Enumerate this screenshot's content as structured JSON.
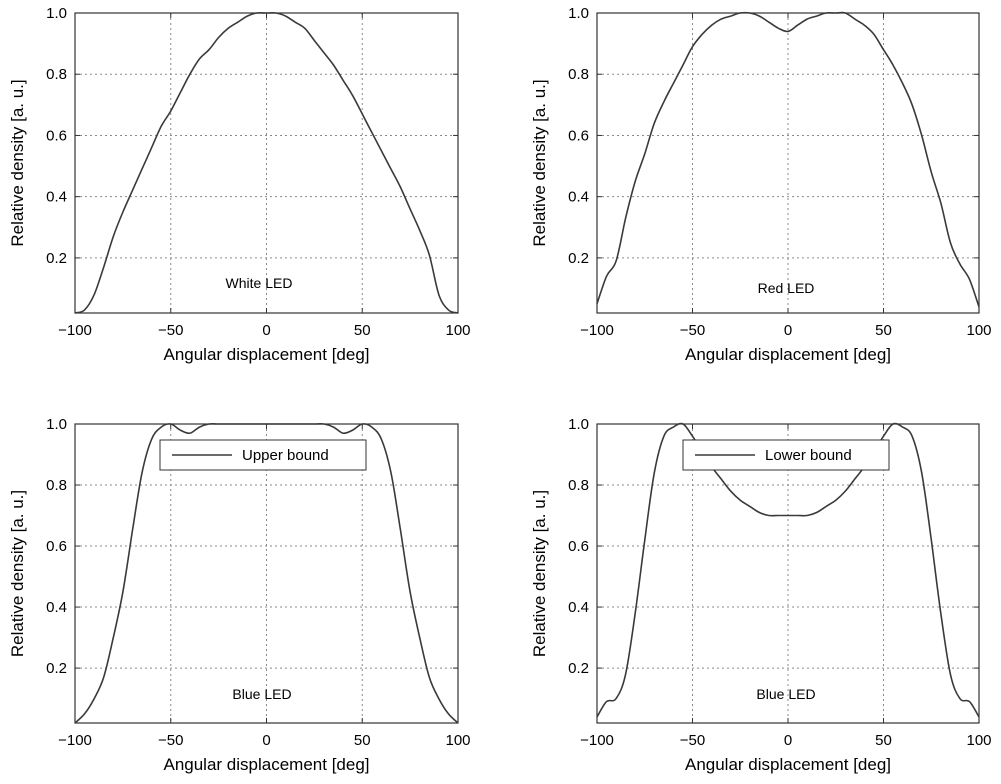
{
  "chart_data": [
    {
      "type": "line",
      "xlabel": "Angular displacement [deg]",
      "ylabel": "Relative density [a. u.]",
      "xlim": [
        -100,
        100
      ],
      "ylim": [
        0.02,
        1.0
      ],
      "xticks": [
        -100,
        -50,
        0,
        50,
        100
      ],
      "yticks": [
        0.2,
        0.4,
        0.6,
        0.8,
        1.0
      ],
      "tick_labels_x": [
        "−100",
        "−50",
        "0",
        "50",
        "100"
      ],
      "tick_labels_y": [
        "0.2",
        "0.4",
        "0.6",
        "0.8",
        "1.0"
      ],
      "grid": true,
      "annotation": "White LED",
      "series": [
        {
          "x": [
            -100,
            -95,
            -90,
            -85,
            -80,
            -75,
            -70,
            -65,
            -60,
            -55,
            -50,
            -45,
            -40,
            -35,
            -30,
            -25,
            -20,
            -15,
            -10,
            -5,
            0,
            5,
            10,
            15,
            20,
            25,
            30,
            35,
            40,
            45,
            50,
            55,
            60,
            65,
            70,
            75,
            80,
            85,
            90,
            95,
            100
          ],
          "y": [
            0.02,
            0.03,
            0.08,
            0.17,
            0.27,
            0.35,
            0.42,
            0.49,
            0.56,
            0.63,
            0.68,
            0.74,
            0.8,
            0.85,
            0.88,
            0.92,
            0.95,
            0.97,
            0.99,
            1.0,
            1.0,
            1.0,
            0.99,
            0.97,
            0.95,
            0.91,
            0.87,
            0.83,
            0.78,
            0.73,
            0.67,
            0.61,
            0.55,
            0.49,
            0.43,
            0.36,
            0.29,
            0.21,
            0.08,
            0.03,
            0.02
          ]
        }
      ]
    },
    {
      "type": "line",
      "xlabel": "Angular displacement [deg]",
      "ylabel": "Relative density [a. u.]",
      "xlim": [
        -100,
        100
      ],
      "ylim": [
        0.02,
        1.0
      ],
      "xticks": [
        -100,
        -50,
        0,
        50,
        100
      ],
      "yticks": [
        0.2,
        0.4,
        0.6,
        0.8,
        1.0
      ],
      "tick_labels_x": [
        "−100",
        "−50",
        "0",
        "50",
        "100"
      ],
      "tick_labels_y": [
        "0.2",
        "0.4",
        "0.6",
        "0.8",
        "1.0"
      ],
      "grid": true,
      "annotation": "Red LED",
      "series": [
        {
          "x": [
            -100,
            -95,
            -90,
            -85,
            -80,
            -75,
            -70,
            -65,
            -60,
            -55,
            -50,
            -45,
            -40,
            -35,
            -30,
            -25,
            -20,
            -15,
            -10,
            -5,
            0,
            5,
            10,
            15,
            20,
            25,
            30,
            35,
            40,
            45,
            50,
            55,
            60,
            65,
            70,
            75,
            80,
            85,
            90,
            95,
            100
          ],
          "y": [
            0.05,
            0.14,
            0.19,
            0.33,
            0.45,
            0.54,
            0.64,
            0.71,
            0.77,
            0.83,
            0.89,
            0.93,
            0.96,
            0.98,
            0.99,
            1.0,
            1.0,
            0.99,
            0.97,
            0.95,
            0.94,
            0.96,
            0.98,
            0.99,
            1.0,
            1.0,
            1.0,
            0.98,
            0.96,
            0.93,
            0.88,
            0.83,
            0.77,
            0.7,
            0.6,
            0.48,
            0.38,
            0.25,
            0.18,
            0.13,
            0.04
          ]
        }
      ]
    },
    {
      "type": "line",
      "xlabel": "Angular displacement [deg]",
      "ylabel": "Relative density [a. u.]",
      "xlim": [
        -100,
        100
      ],
      "ylim": [
        0.02,
        1.0
      ],
      "xticks": [
        -100,
        -50,
        0,
        50,
        100
      ],
      "yticks": [
        0.2,
        0.4,
        0.6,
        0.8,
        1.0
      ],
      "tick_labels_x": [
        "−100",
        "−50",
        "0",
        "50",
        "100"
      ],
      "tick_labels_y": [
        "0.2",
        "0.4",
        "0.6",
        "0.8",
        "1.0"
      ],
      "grid": true,
      "annotation": "Blue LED",
      "legend": "top-center",
      "series": [
        {
          "name": "Upper bound",
          "x": [
            -100,
            -95,
            -90,
            -85,
            -80,
            -75,
            -70,
            -65,
            -60,
            -55,
            -50,
            -45,
            -40,
            -35,
            -30,
            -25,
            -20,
            -15,
            -10,
            -5,
            0,
            5,
            10,
            15,
            20,
            25,
            30,
            35,
            40,
            45,
            50,
            55,
            60,
            65,
            70,
            75,
            80,
            85,
            90,
            95,
            100
          ],
          "y": [
            0.02,
            0.05,
            0.1,
            0.17,
            0.3,
            0.45,
            0.65,
            0.84,
            0.95,
            0.99,
            1.0,
            0.98,
            0.97,
            0.99,
            1.0,
            1.0,
            1.0,
            1.0,
            1.0,
            1.0,
            1.0,
            1.0,
            1.0,
            1.0,
            1.0,
            1.0,
            1.0,
            0.99,
            0.97,
            0.98,
            1.0,
            0.99,
            0.95,
            0.84,
            0.65,
            0.45,
            0.3,
            0.17,
            0.1,
            0.05,
            0.02
          ]
        }
      ]
    },
    {
      "type": "line",
      "xlabel": "Angular displacement [deg]",
      "ylabel": "Relative density [a. u.]",
      "xlim": [
        -100,
        100
      ],
      "ylim": [
        0.02,
        1.0
      ],
      "xticks": [
        -100,
        -50,
        0,
        50,
        100
      ],
      "yticks": [
        0.2,
        0.4,
        0.6,
        0.8,
        1.0
      ],
      "tick_labels_x": [
        "−100",
        "−50",
        "0",
        "50",
        "100"
      ],
      "tick_labels_y": [
        "0.2",
        "0.4",
        "0.6",
        "0.8",
        "1.0"
      ],
      "grid": true,
      "annotation": "Blue LED",
      "legend": "top-center",
      "series": [
        {
          "name": "Lower bound",
          "x": [
            -100,
            -95,
            -90,
            -85,
            -80,
            -75,
            -70,
            -65,
            -60,
            -55,
            -50,
            -45,
            -40,
            -35,
            -30,
            -25,
            -20,
            -15,
            -10,
            -5,
            0,
            5,
            10,
            15,
            20,
            25,
            30,
            35,
            40,
            45,
            50,
            55,
            60,
            65,
            70,
            75,
            80,
            85,
            90,
            95,
            100
          ],
          "y": [
            0.04,
            0.09,
            0.1,
            0.18,
            0.38,
            0.62,
            0.84,
            0.96,
            0.99,
            1.0,
            0.96,
            0.91,
            0.86,
            0.82,
            0.78,
            0.75,
            0.73,
            0.71,
            0.7,
            0.7,
            0.7,
            0.7,
            0.7,
            0.71,
            0.73,
            0.75,
            0.78,
            0.82,
            0.86,
            0.91,
            0.96,
            1.0,
            0.99,
            0.96,
            0.84,
            0.62,
            0.38,
            0.18,
            0.1,
            0.09,
            0.04
          ]
        }
      ]
    }
  ]
}
